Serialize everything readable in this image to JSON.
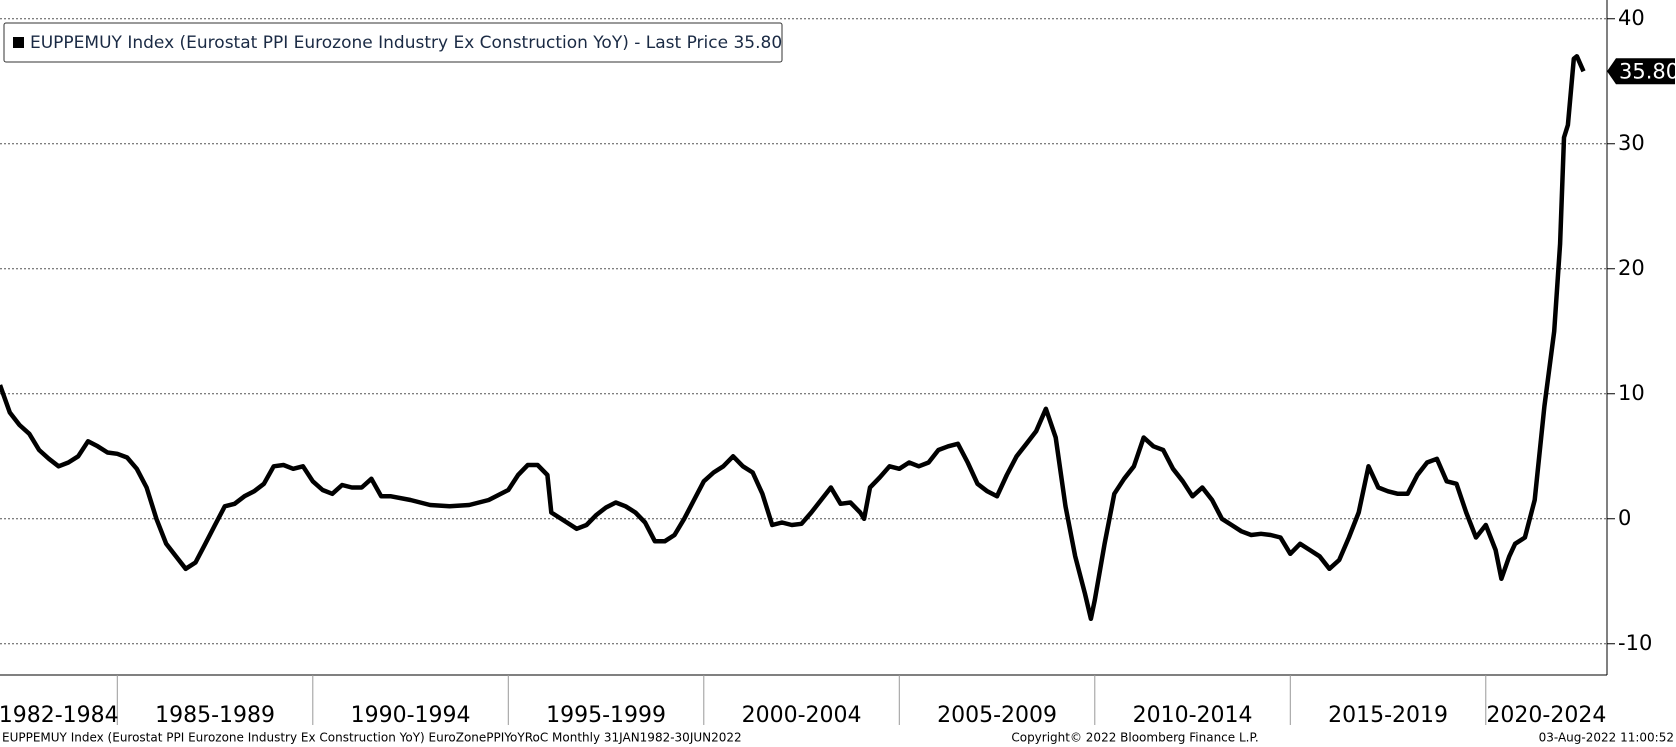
{
  "chart_data": {
    "type": "line",
    "series": [
      {
        "name": "EUPPEMUY Index (Eurostat PPI Eurozone Industry Ex Construction YoY) - Last Price 35.80",
        "color": "#000000",
        "x": [
          1982.0,
          1982.25,
          1982.5,
          1982.75,
          1983.0,
          1983.25,
          1983.5,
          1983.75,
          1984.0,
          1984.25,
          1984.5,
          1984.75,
          1985.0,
          1985.25,
          1985.5,
          1985.75,
          1986.0,
          1986.25,
          1986.5,
          1986.75,
          1987.0,
          1987.25,
          1987.5,
          1987.75,
          1988.0,
          1988.25,
          1988.5,
          1988.75,
          1989.0,
          1989.25,
          1989.5,
          1989.75,
          1990.0,
          1990.25,
          1990.5,
          1990.75,
          1991.0,
          1991.25,
          1991.5,
          1991.75,
          1992.0,
          1992.5,
          1993.0,
          1993.5,
          1994.0,
          1994.5,
          1995.0,
          1995.25,
          1995.5,
          1995.75,
          1996.0,
          1996.1,
          1996.5,
          1996.75,
          1997.0,
          1997.25,
          1997.5,
          1997.75,
          1998.0,
          1998.25,
          1998.5,
          1998.75,
          1999.0,
          1999.25,
          1999.5,
          1999.75,
          2000.0,
          2000.25,
          2000.5,
          2000.75,
          2001.0,
          2001.25,
          2001.5,
          2001.75,
          2002.0,
          2002.25,
          2002.5,
          2002.75,
          2003.0,
          2003.25,
          2003.5,
          2003.75,
          2004.0,
          2004.1,
          2004.25,
          2004.5,
          2004.75,
          2005.0,
          2005.25,
          2005.5,
          2005.75,
          2006.0,
          2006.25,
          2006.5,
          2006.75,
          2007.0,
          2007.25,
          2007.5,
          2007.75,
          2008.0,
          2008.25,
          2008.5,
          2008.75,
          2009.0,
          2009.25,
          2009.5,
          2009.75,
          2009.9,
          2010.0,
          2010.25,
          2010.5,
          2010.75,
          2011.0,
          2011.25,
          2011.5,
          2011.75,
          2012.0,
          2012.25,
          2012.5,
          2012.75,
          2013.0,
          2013.25,
          2013.5,
          2013.75,
          2014.0,
          2014.25,
          2014.5,
          2014.75,
          2015.0,
          2015.25,
          2015.5,
          2015.75,
          2016.0,
          2016.25,
          2016.5,
          2016.75,
          2017.0,
          2017.25,
          2017.5,
          2017.75,
          2018.0,
          2018.25,
          2018.5,
          2018.75,
          2019.0,
          2019.25,
          2019.5,
          2019.75,
          2020.0,
          2020.25,
          2020.4,
          2020.6,
          2020.75,
          2021.0,
          2021.25,
          2021.5,
          2021.75,
          2021.9,
          2022.0,
          2022.1,
          2022.25,
          2022.33,
          2022.5
        ],
        "values": [
          10.7,
          8.5,
          7.5,
          6.8,
          5.5,
          4.8,
          4.2,
          4.5,
          5.0,
          6.2,
          5.8,
          5.3,
          5.2,
          4.9,
          4.0,
          2.5,
          0,
          -2.0,
          -3.0,
          -4.0,
          -3.5,
          -2.0,
          -0.5,
          1.0,
          1.2,
          1.8,
          2.2,
          2.8,
          4.2,
          4.3,
          4.0,
          4.2,
          3.0,
          2.3,
          2.0,
          2.7,
          2.5,
          2.5,
          3.2,
          1.8,
          1.8,
          1.5,
          1.1,
          1.0,
          1.1,
          1.5,
          2.3,
          3.5,
          4.3,
          4.3,
          3.5,
          0.5,
          -0.3,
          -0.8,
          -0.5,
          0.3,
          0.9,
          1.3,
          1.0,
          0.5,
          -0.3,
          -1.8,
          -1.8,
          -1.3,
          0,
          1.5,
          3.0,
          3.7,
          4.2,
          5.0,
          4.2,
          3.7,
          2.0,
          -0.5,
          -0.3,
          -0.5,
          -0.4,
          0.5,
          1.5,
          2.5,
          1.2,
          1.3,
          0.5,
          0,
          2.5,
          3.3,
          4.2,
          4.0,
          4.5,
          4.2,
          4.5,
          5.5,
          5.8,
          6.0,
          4.5,
          2.8,
          2.2,
          1.8,
          3.5,
          5.0,
          6.0,
          7.0,
          8.8,
          6.5,
          1.0,
          -3.0,
          -6.0,
          -8.0,
          -6.5,
          -2.0,
          2.0,
          3.2,
          4.2,
          6.5,
          5.8,
          5.5,
          4.0,
          3.0,
          1.8,
          2.5,
          1.5,
          0,
          -0.5,
          -1.0,
          -1.3,
          -1.2,
          -1.3,
          -1.5,
          -2.8,
          -2.0,
          -2.5,
          -3.0,
          -4.0,
          -3.3,
          -1.5,
          0.5,
          4.2,
          2.5,
          2.2,
          2.0,
          2.0,
          3.5,
          4.5,
          4.8,
          3.0,
          2.8,
          0.5,
          -1.5,
          -0.5,
          -2.5,
          -4.8,
          -3.0,
          -2.0,
          -1.5,
          1.5,
          9.0,
          15.0,
          22.0,
          30.5,
          31.5,
          36.8,
          37.0,
          35.8
        ]
      }
    ],
    "last_price_label": "35.80",
    "categories": [
      "1982-1984",
      "1985-1989",
      "1990-1994",
      "1995-1999",
      "2000-2004",
      "2005-2009",
      "2010-2014",
      "2015-2019",
      "2020-2024"
    ],
    "xlim": [
      1982,
      2023.1
    ],
    "xticks": [
      1985,
      1990,
      1995,
      2000,
      2005,
      2010,
      2015,
      2020
    ],
    "ylim": [
      -12.5,
      41.5
    ],
    "yticks": [
      -10,
      0,
      10,
      20,
      30,
      40
    ],
    "grid": true,
    "legend": "top-left",
    "footer": {
      "source": "EUPPEMUY Index (Eurostat PPI Eurozone Industry Ex Construction YoY) EuroZonePPIYoYRoC  Monthly 31JAN1982-30JUN2022",
      "copyright": "Copyright© 2022 Bloomberg Finance L.P.",
      "timestamp": "03-Aug-2022 11:00:52"
    }
  }
}
